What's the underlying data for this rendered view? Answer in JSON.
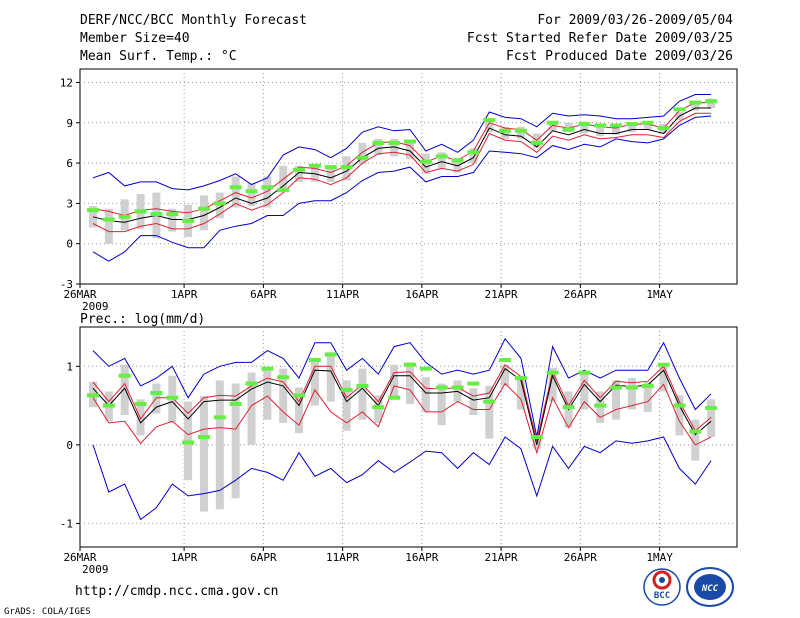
{
  "header": {
    "title": "DERF/NCC/BCC Monthly Forecast",
    "member_size": "Member Size=40",
    "variable": "Mean Surf. Temp.: °C",
    "period": "For 2009/03/26-2009/05/04",
    "refer_date": "Fcst Started Refer Date 2009/03/25",
    "produced_date": "Fcst Produced Date 2009/03/26"
  },
  "footer": {
    "url": "http://cmdp.ncc.cma.gov.cn",
    "credit": "GrADS: COLA/IGES",
    "logo_left": "BCC",
    "logo_right": "NCC"
  },
  "colors": {
    "envelope": "#0000cc",
    "spread": "#dd2233",
    "mean": "#000000",
    "box": "#d0d0d0",
    "marker": "#66ee44",
    "grid": "#999999"
  },
  "chart_data": [
    {
      "type": "line",
      "title": "Mean Surf. Temp.: °C",
      "xlabel": "",
      "ylabel": "°C",
      "year_label": "2009",
      "ylim": [
        -3,
        13
      ],
      "yticks": [
        -3,
        0,
        3,
        6,
        9,
        12
      ],
      "xticks": [
        {
          "day": 0,
          "label": "26MAR"
        },
        {
          "day": 6,
          "label": "1APR"
        },
        {
          "day": 11,
          "label": "6APR"
        },
        {
          "day": 16,
          "label": "11APR"
        },
        {
          "day": 21,
          "label": "16APR"
        },
        {
          "day": 26,
          "label": "21APR"
        },
        {
          "day": 31,
          "label": "26APR"
        },
        {
          "day": 36,
          "label": "1MAY"
        }
      ],
      "x": [
        0,
        1,
        2,
        3,
        4,
        5,
        6,
        7,
        8,
        9,
        10,
        11,
        12,
        13,
        14,
        15,
        16,
        17,
        18,
        19,
        20,
        21,
        22,
        23,
        24,
        25,
        26,
        27,
        28,
        29,
        30,
        31,
        32,
        33,
        34,
        35,
        36,
        37,
        38,
        39
      ],
      "series": [
        {
          "name": "max",
          "values": [
            4.9,
            5.3,
            4.3,
            4.6,
            4.6,
            4.1,
            4.0,
            4.3,
            4.7,
            5.2,
            4.4,
            4.9,
            6.6,
            7.2,
            7.0,
            6.4,
            7.1,
            8.3,
            8.7,
            8.4,
            8.5,
            6.9,
            7.4,
            6.8,
            7.7,
            9.8,
            9.4,
            9.3,
            8.7,
            9.7,
            9.5,
            9.6,
            9.5,
            9.3,
            9.3,
            9.4,
            9.5,
            10.6,
            11.1,
            11.1
          ]
        },
        {
          "name": "upper",
          "values": [
            2.6,
            2.4,
            2.1,
            2.5,
            2.6,
            2.4,
            2.3,
            2.6,
            3.2,
            3.8,
            3.4,
            3.9,
            4.8,
            5.7,
            5.6,
            5.3,
            5.8,
            6.8,
            7.5,
            7.6,
            7.3,
            6.1,
            6.5,
            6.2,
            6.9,
            9.0,
            8.6,
            8.5,
            7.7,
            8.8,
            8.6,
            8.9,
            8.7,
            8.6,
            8.9,
            8.9,
            8.6,
            9.9,
            10.5,
            10.5
          ]
        },
        {
          "name": "mean",
          "values": [
            2.0,
            1.7,
            1.6,
            1.9,
            2.1,
            1.8,
            1.8,
            2.1,
            2.7,
            3.4,
            3.0,
            3.4,
            4.3,
            5.3,
            5.2,
            4.9,
            5.4,
            6.4,
            7.1,
            7.2,
            6.9,
            5.7,
            6.1,
            5.8,
            6.4,
            8.6,
            8.1,
            8.0,
            7.2,
            8.4,
            8.1,
            8.5,
            8.2,
            8.2,
            8.5,
            8.5,
            8.2,
            9.5,
            10.1,
            10.1
          ]
        },
        {
          "name": "lower",
          "values": [
            1.5,
            0.9,
            0.9,
            1.3,
            1.5,
            1.1,
            1.1,
            1.5,
            2.2,
            3.0,
            2.5,
            2.9,
            3.8,
            4.9,
            4.8,
            4.4,
            4.9,
            6.0,
            6.7,
            6.8,
            6.6,
            5.3,
            5.6,
            5.4,
            5.9,
            8.2,
            7.7,
            7.6,
            6.8,
            8.0,
            7.7,
            8.1,
            7.8,
            7.9,
            8.1,
            8.1,
            7.9,
            9.1,
            9.7,
            9.7
          ]
        },
        {
          "name": "min",
          "values": [
            -0.6,
            -1.3,
            -0.6,
            0.6,
            0.6,
            0.1,
            -0.3,
            -0.3,
            1.0,
            1.3,
            1.5,
            2.1,
            2.1,
            3.0,
            3.2,
            3.2,
            3.8,
            4.7,
            5.3,
            5.4,
            5.7,
            4.6,
            5.0,
            5.0,
            5.3,
            6.9,
            6.8,
            6.7,
            6.4,
            7.3,
            7.0,
            7.4,
            7.2,
            7.8,
            7.6,
            7.5,
            7.8,
            8.8,
            9.4,
            9.5
          ]
        },
        {
          "name": "box_high",
          "values": [
            2.8,
            2.6,
            3.3,
            3.7,
            3.8,
            2.6,
            2.9,
            3.6,
            3.8,
            5.0,
            4.5,
            5.0,
            5.8,
            5.8,
            5.7,
            5.7,
            6.5,
            7.5,
            7.8,
            7.8,
            7.5,
            6.7,
            6.8,
            6.4,
            7.1,
            9.2,
            8.7,
            8.7,
            8.2,
            9.1,
            9.0,
            9.1,
            8.9,
            8.9,
            9.0,
            9.0,
            8.9,
            9.8,
            10.4,
            10.8
          ]
        },
        {
          "name": "box_low",
          "values": [
            1.2,
            0.0,
            1.0,
            1.1,
            0.4,
            0.9,
            0.5,
            1.0,
            1.9,
            2.7,
            2.8,
            2.7,
            4.1,
            4.6,
            4.6,
            4.6,
            4.7,
            5.9,
            6.6,
            6.5,
            6.3,
            5.2,
            5.6,
            5.3,
            6.0,
            8.3,
            7.8,
            7.8,
            7.1,
            8.4,
            8.3,
            8.2,
            8.0,
            8.1,
            8.3,
            8.5,
            8.2,
            9.2,
            9.9,
            10.1
          ]
        },
        {
          "name": "marker",
          "values": [
            2.5,
            1.8,
            2.0,
            2.4,
            2.2,
            2.2,
            1.7,
            2.6,
            3.0,
            4.2,
            3.9,
            4.2,
            4.0,
            5.5,
            5.8,
            5.7,
            5.7,
            6.4,
            7.5,
            7.5,
            7.6,
            6.1,
            6.5,
            6.2,
            6.8,
            9.2,
            8.4,
            8.4,
            7.5,
            9.0,
            8.5,
            8.9,
            8.8,
            8.8,
            8.9,
            9.0,
            8.6,
            10.0,
            10.5,
            10.6
          ]
        }
      ]
    },
    {
      "type": "line",
      "title": "Prec.: log(mm/d)",
      "xlabel": "",
      "ylabel": "log(mm/d)",
      "year_label": "2009",
      "ylim": [
        -1.3,
        1.5
      ],
      "yticks": [
        -1,
        0,
        1
      ],
      "xticks": [
        {
          "day": 0,
          "label": "26MAR"
        },
        {
          "day": 6,
          "label": "1APR"
        },
        {
          "day": 11,
          "label": "6APR"
        },
        {
          "day": 16,
          "label": "11APR"
        },
        {
          "day": 21,
          "label": "16APR"
        },
        {
          "day": 26,
          "label": "21APR"
        },
        {
          "day": 31,
          "label": "26APR"
        },
        {
          "day": 36,
          "label": "1MAY"
        }
      ],
      "x": [
        0,
        1,
        2,
        3,
        4,
        5,
        6,
        7,
        8,
        9,
        10,
        11,
        12,
        13,
        14,
        15,
        16,
        17,
        18,
        19,
        20,
        21,
        22,
        23,
        24,
        25,
        26,
        27,
        28,
        29,
        30,
        31,
        32,
        33,
        34,
        35,
        36,
        37,
        38,
        39
      ],
      "series": [
        {
          "name": "max",
          "values": [
            1.2,
            1.0,
            1.1,
            0.75,
            0.85,
            1.0,
            0.6,
            0.9,
            1.0,
            1.05,
            1.05,
            1.2,
            1.1,
            0.85,
            1.3,
            1.3,
            0.95,
            1.1,
            0.9,
            1.25,
            1.3,
            1.05,
            0.9,
            0.95,
            0.9,
            0.95,
            1.35,
            1.1,
            0.1,
            1.25,
            0.85,
            0.95,
            0.85,
            0.95,
            0.95,
            0.95,
            1.3,
            0.85,
            0.45,
            0.65
          ]
        },
        {
          "name": "upper",
          "values": [
            0.8,
            0.55,
            0.78,
            0.33,
            0.6,
            0.6,
            0.4,
            0.6,
            0.63,
            0.62,
            0.75,
            0.85,
            0.8,
            0.55,
            1.0,
            1.0,
            0.6,
            0.77,
            0.55,
            0.92,
            0.93,
            0.72,
            0.71,
            0.73,
            0.62,
            0.66,
            1.02,
            0.87,
            0.05,
            0.93,
            0.5,
            0.82,
            0.6,
            0.81,
            0.79,
            0.81,
            1.0,
            0.55,
            0.18,
            0.35
          ]
        },
        {
          "name": "mean",
          "values": [
            0.72,
            0.5,
            0.72,
            0.28,
            0.48,
            0.55,
            0.33,
            0.55,
            0.57,
            0.57,
            0.71,
            0.8,
            0.75,
            0.5,
            0.95,
            0.94,
            0.55,
            0.72,
            0.5,
            0.88,
            0.88,
            0.66,
            0.66,
            0.68,
            0.57,
            0.6,
            0.97,
            0.82,
            0.0,
            0.88,
            0.45,
            0.77,
            0.55,
            0.76,
            0.74,
            0.76,
            0.95,
            0.5,
            0.13,
            0.3
          ]
        },
        {
          "name": "lower",
          "values": [
            0.6,
            0.28,
            0.3,
            0.02,
            0.23,
            0.3,
            0.13,
            0.2,
            0.22,
            0.2,
            0.5,
            0.62,
            0.42,
            0.25,
            0.7,
            0.42,
            0.28,
            0.42,
            0.23,
            0.75,
            0.7,
            0.42,
            0.42,
            0.55,
            0.45,
            0.45,
            0.78,
            0.58,
            -0.1,
            0.6,
            0.22,
            0.55,
            0.35,
            0.45,
            0.5,
            0.55,
            0.77,
            0.3,
            0.0,
            0.1
          ]
        },
        {
          "name": "min",
          "values": [
            0.0,
            -0.6,
            -0.5,
            -0.95,
            -0.8,
            -0.5,
            -0.65,
            -0.62,
            -0.58,
            -0.45,
            -0.3,
            -0.35,
            -0.45,
            -0.1,
            -0.4,
            -0.3,
            -0.48,
            -0.38,
            -0.2,
            -0.35,
            -0.22,
            -0.08,
            -0.1,
            -0.3,
            -0.1,
            -0.25,
            0.1,
            -0.05,
            -0.65,
            -0.02,
            -0.3,
            -0.02,
            -0.1,
            0.05,
            0.02,
            0.05,
            0.1,
            -0.3,
            -0.5,
            -0.2
          ]
        },
        {
          "name": "box_high",
          "values": [
            0.8,
            0.68,
            1.02,
            0.58,
            0.78,
            0.88,
            0.55,
            0.62,
            0.82,
            0.78,
            0.92,
            0.95,
            0.97,
            0.73,
            1.08,
            1.18,
            0.82,
            0.97,
            0.63,
            1.02,
            1.05,
            0.86,
            0.78,
            0.82,
            0.72,
            0.75,
            1.02,
            0.88,
            0.14,
            0.98,
            0.68,
            0.92,
            0.68,
            0.82,
            0.85,
            0.8,
            1.03,
            0.63,
            0.32,
            0.58
          ]
        },
        {
          "name": "box_low",
          "values": [
            0.48,
            0.3,
            0.38,
            0.12,
            0.4,
            0.28,
            -0.45,
            -0.85,
            -0.82,
            -0.68,
            0.0,
            0.32,
            0.28,
            0.15,
            0.5,
            0.55,
            0.18,
            0.32,
            0.28,
            0.6,
            0.52,
            0.42,
            0.25,
            0.55,
            0.38,
            0.08,
            0.75,
            0.45,
            -0.05,
            0.55,
            0.22,
            0.45,
            0.28,
            0.32,
            0.45,
            0.42,
            0.68,
            0.12,
            -0.2,
            0.1
          ]
        },
        {
          "name": "marker",
          "values": [
            0.63,
            0.5,
            0.88,
            0.52,
            0.66,
            0.6,
            0.03,
            0.1,
            0.35,
            0.52,
            0.78,
            0.97,
            0.86,
            0.63,
            1.08,
            1.15,
            0.7,
            0.75,
            0.48,
            0.6,
            1.02,
            0.97,
            0.73,
            0.73,
            0.78,
            0.55,
            1.08,
            0.85,
            0.1,
            0.92,
            0.48,
            0.92,
            0.5,
            0.73,
            0.73,
            0.75,
            1.02,
            0.5,
            0.17,
            0.47
          ]
        }
      ]
    }
  ]
}
